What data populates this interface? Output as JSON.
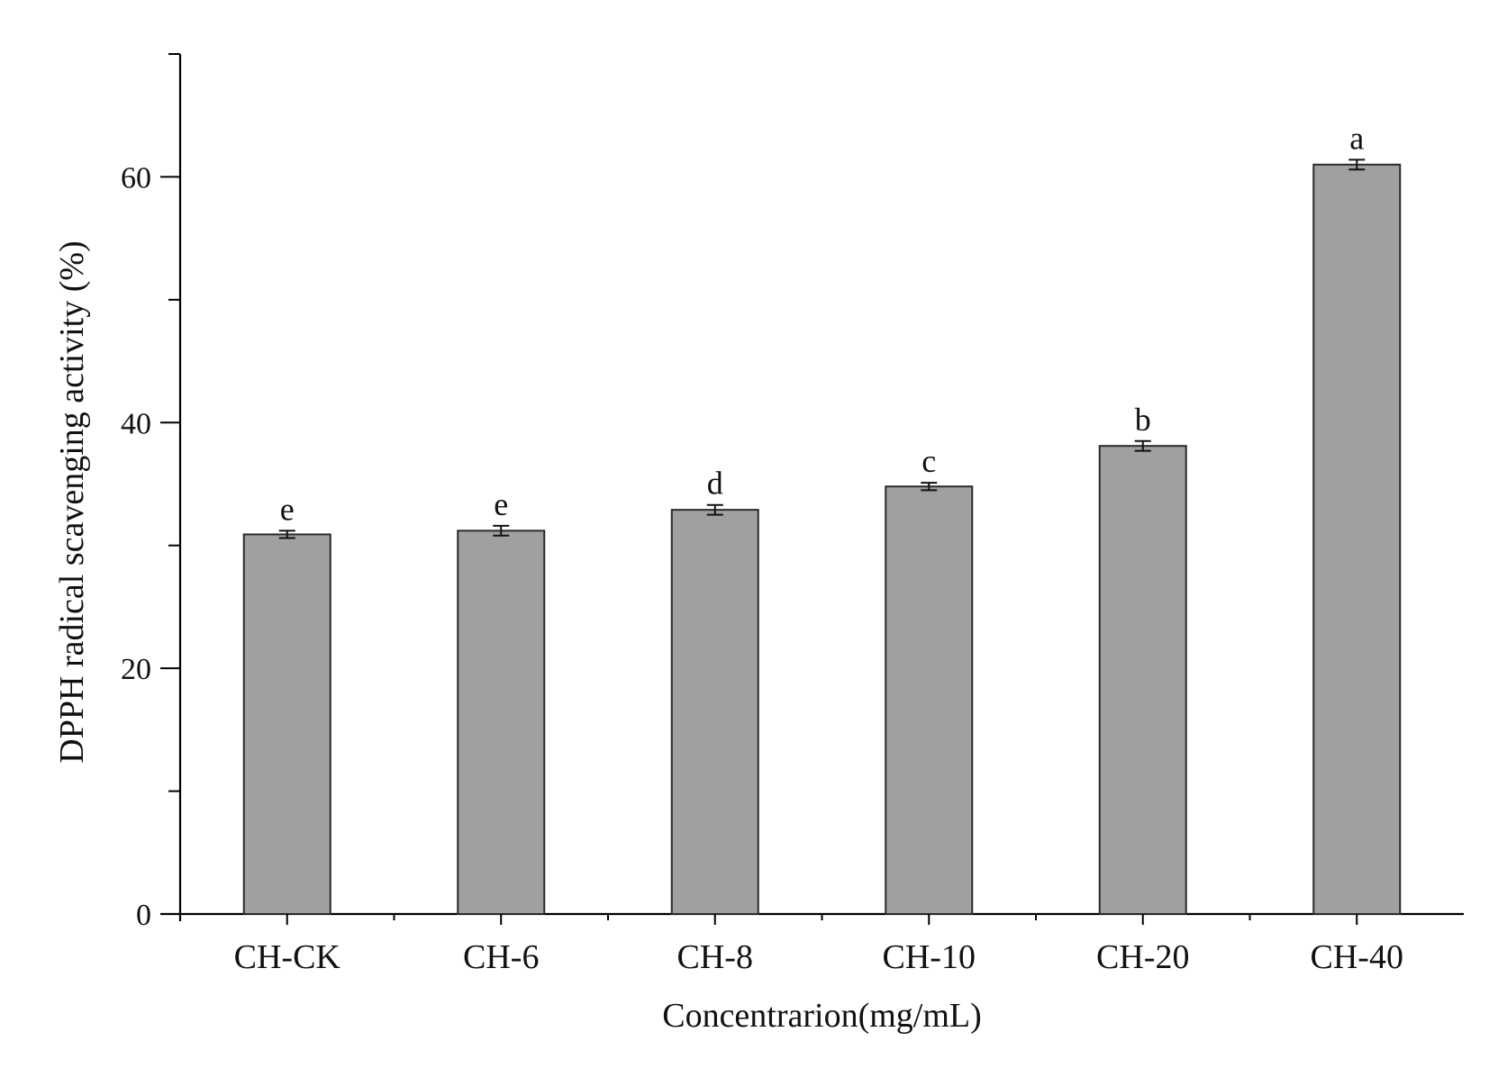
{
  "chart_data": {
    "type": "bar",
    "title": "",
    "xlabel": "Concentrarion(mg/mL)",
    "ylabel": "DPPH radical scavenging activity (%)",
    "ylim": [
      0,
      70
    ],
    "yticks": [
      0,
      20,
      40,
      60
    ],
    "categories": [
      "CH-CK",
      "CH-6",
      "CH-8",
      "CH-10",
      "CH-20",
      "CH-40"
    ],
    "values": [
      30.9,
      31.2,
      32.9,
      34.8,
      38.1,
      61.0
    ],
    "errors": [
      0.3,
      0.4,
      0.4,
      0.3,
      0.4,
      0.4
    ],
    "significance": [
      "e",
      "e",
      "d",
      "c",
      "b",
      "a"
    ],
    "bar_color": "#a0a0a0",
    "grid": false,
    "legend": "none"
  }
}
